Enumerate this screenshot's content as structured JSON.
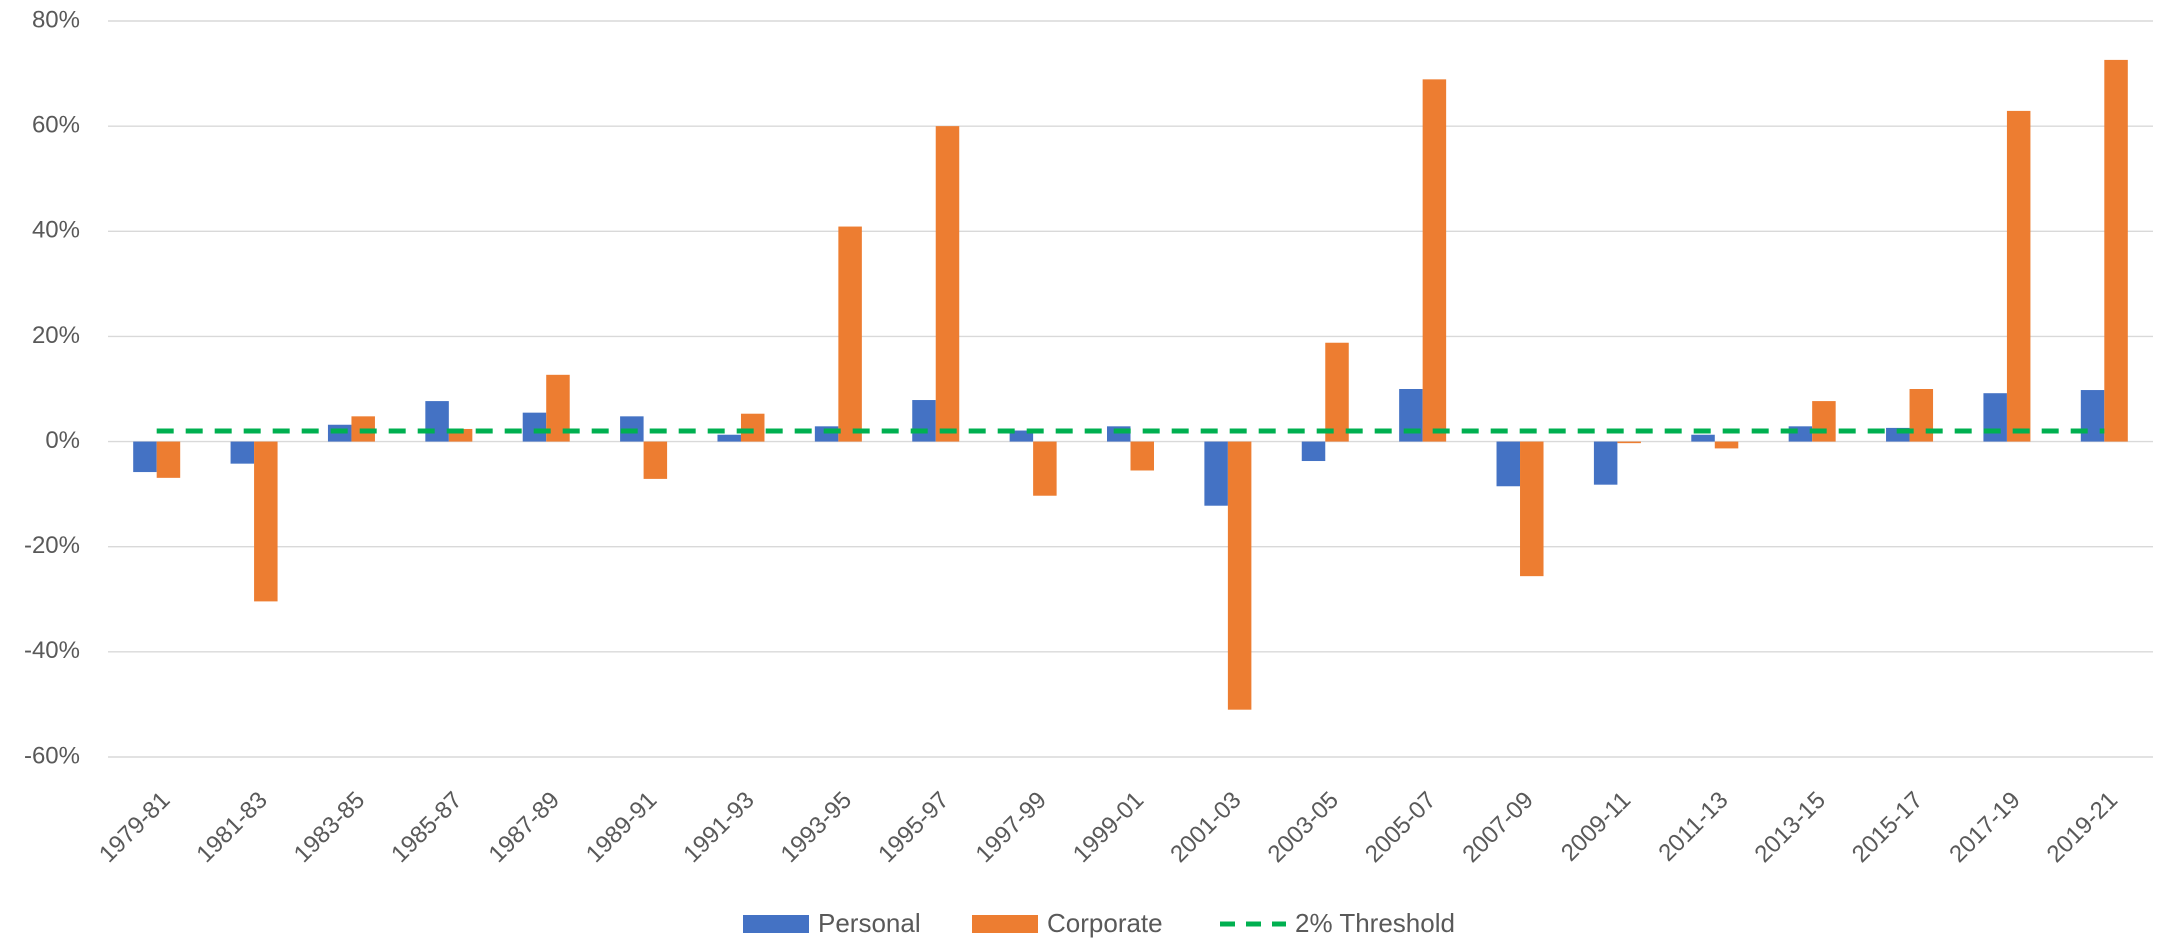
{
  "chart_data": {
    "type": "bar",
    "categories": [
      "1979-81",
      "1981-83",
      "1983-85",
      "1985-87",
      "1987-89",
      "1989-91",
      "1991-93",
      "1993-95",
      "1995-97",
      "1997-99",
      "1999-01",
      "2001-03",
      "2003-05",
      "2005-07",
      "2007-09",
      "2009-11",
      "2011-13",
      "2013-15",
      "2015-17",
      "2017-19",
      "2019-21"
    ],
    "series": [
      {
        "name": "Personal",
        "color": "#4472c4",
        "type": "bar",
        "values": [
          -5.8,
          -4.2,
          3.2,
          7.7,
          5.5,
          4.8,
          1.3,
          2.9,
          7.9,
          2.1,
          2.9,
          -12.2,
          -3.7,
          10.0,
          -8.5,
          -8.2,
          1.3,
          2.9,
          2.6,
          9.2,
          9.8
        ]
      },
      {
        "name": "Corporate",
        "color": "#ed7d31",
        "type": "bar",
        "values": [
          -6.9,
          -30.4,
          4.8,
          2.4,
          12.7,
          -7.1,
          5.3,
          40.9,
          60.0,
          -10.3,
          -5.5,
          -51.0,
          18.8,
          68.9,
          -25.6,
          -0.3,
          -1.3,
          7.7,
          10.0,
          62.9,
          72.6
        ]
      },
      {
        "name": "2% Threshold",
        "color": "#00b050",
        "type": "line",
        "values": [
          2,
          2,
          2,
          2,
          2,
          2,
          2,
          2,
          2,
          2,
          2,
          2,
          2,
          2,
          2,
          2,
          2,
          2,
          2,
          2,
          2
        ]
      }
    ],
    "ylim": [
      -60,
      80
    ],
    "yticks": [
      {
        "value": -60,
        "label": "-60%"
      },
      {
        "value": -40,
        "label": "-40%"
      },
      {
        "value": -20,
        "label": "-20%"
      },
      {
        "value": 0,
        "label": "0%"
      },
      {
        "value": 20,
        "label": "20%"
      },
      {
        "value": 40,
        "label": "40%"
      },
      {
        "value": 60,
        "label": "60%"
      },
      {
        "value": 80,
        "label": "80%"
      }
    ],
    "grid": true,
    "legend": "bottom"
  }
}
